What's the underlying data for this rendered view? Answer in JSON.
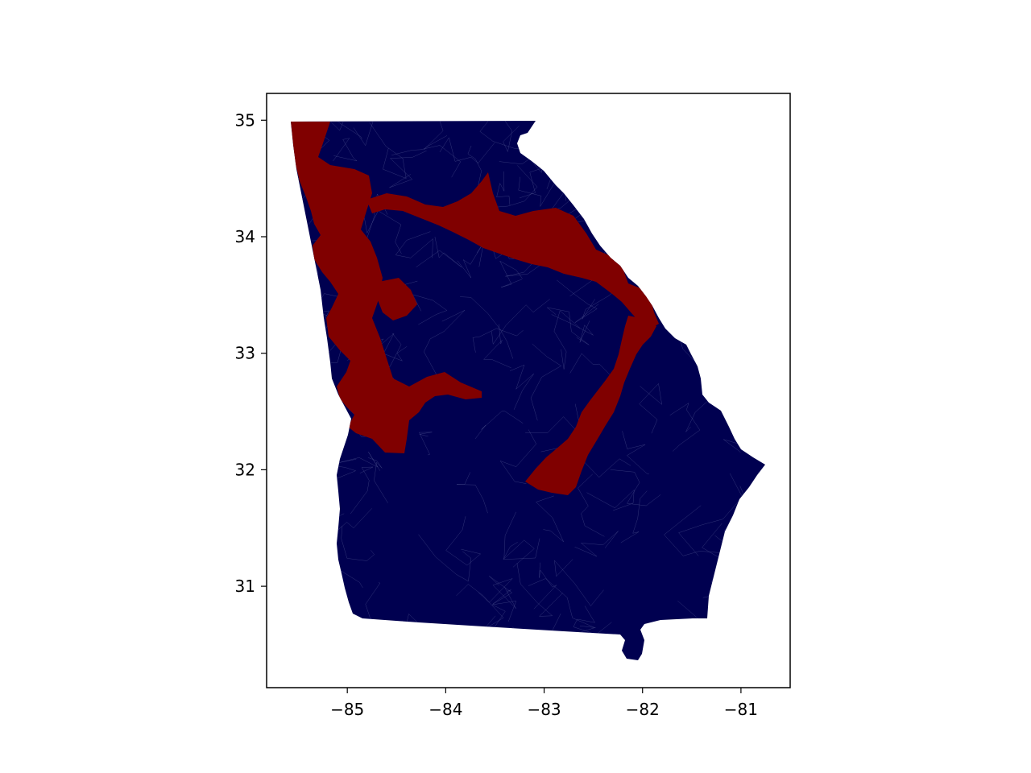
{
  "chart_data": {
    "type": "map",
    "region": "state precinct map",
    "xlim": [
      -85.82,
      -80.5
    ],
    "ylim": [
      30.13,
      35.23
    ],
    "x_ticks": [
      -85,
      -84,
      -83,
      -82,
      -81
    ],
    "y_ticks": [
      31,
      32,
      33,
      34,
      35
    ],
    "x_tick_labels": [
      "−85",
      "−84",
      "−83",
      "−82",
      "−81"
    ],
    "y_tick_labels": [
      "31",
      "32",
      "33",
      "34",
      "35"
    ],
    "colors": {
      "majority_fill": "#000050",
      "highlight_fill": "#800000",
      "precinct_lines": "#5a5f99"
    },
    "grid": false,
    "legend": null
  }
}
